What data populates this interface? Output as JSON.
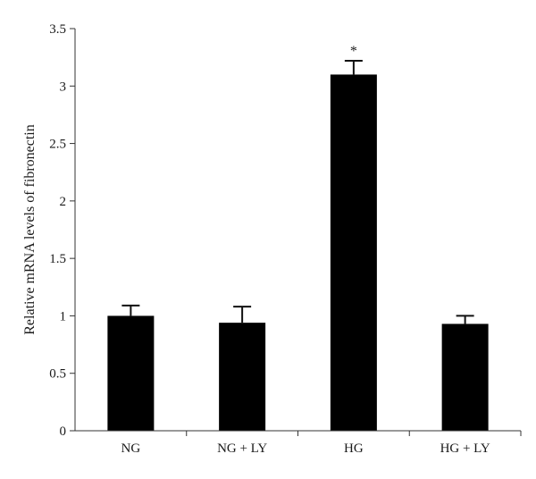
{
  "chart_data": {
    "type": "bar",
    "title": "",
    "xlabel": "",
    "ylabel": "Relative mRNA levels of fibronectin",
    "ylim": [
      0,
      3.5
    ],
    "yticks": [
      "0",
      "0.5",
      "1",
      "1.5",
      "2",
      "2.5",
      "3",
      "3.5"
    ],
    "categories": [
      "NG",
      "NG + LY",
      "HG",
      "HG + LY"
    ],
    "values": [
      1.0,
      0.94,
      3.1,
      0.93
    ],
    "error": [
      0.09,
      0.14,
      0.12,
      0.07
    ],
    "annotations": [
      "",
      "",
      "*",
      ""
    ],
    "grid": false,
    "bar_color": "#000000",
    "axis_color": "#333333"
  }
}
